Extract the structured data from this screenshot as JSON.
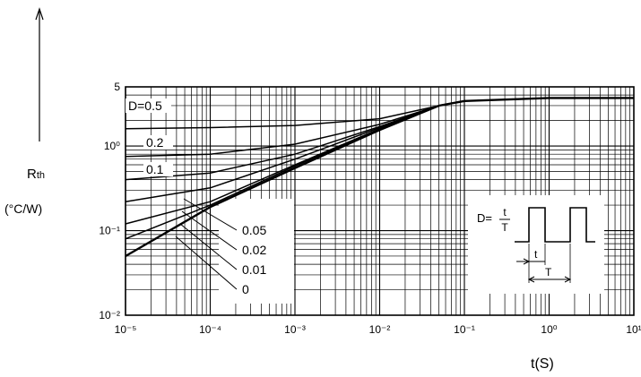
{
  "chart_data": {
    "type": "line",
    "title": "",
    "ylabel": "Rth",
    "ylabel_unit": "(°C/W)",
    "xlabel": "t(S)",
    "x_scale": "log",
    "y_scale": "log",
    "xlim": [
      1e-05,
      10
    ],
    "ylim": [
      0.01,
      5
    ],
    "grid": true,
    "x_tick_labels": [
      "10⁻⁵",
      "10⁻⁴",
      "10⁻³",
      "10⁻²",
      "10⁻¹",
      "10⁰",
      "10¹"
    ],
    "x_tick_values": [
      1e-05,
      0.0001,
      0.001,
      0.01,
      0.1,
      1,
      10
    ],
    "y_tick_labels": [
      "10⁻²",
      "10⁻¹",
      "10⁰",
      "5"
    ],
    "y_tick_values": [
      0.01,
      0.1,
      1,
      5
    ],
    "series": [
      {
        "name": "D=0.5",
        "x": [
          1e-05,
          0.0001,
          0.001,
          0.01,
          0.05,
          0.1,
          1,
          10
        ],
        "y": [
          1.6,
          1.65,
          1.75,
          2.1,
          3.0,
          3.4,
          3.7,
          3.7
        ]
      },
      {
        "name": "0.2",
        "x": [
          1e-05,
          0.0001,
          0.001,
          0.01,
          0.05,
          0.1,
          1,
          10
        ],
        "y": [
          0.75,
          0.8,
          1.05,
          1.8,
          3.0,
          3.4,
          3.7,
          3.7
        ]
      },
      {
        "name": "0.1",
        "x": [
          1e-05,
          0.0001,
          0.001,
          0.01,
          0.05,
          0.1,
          1,
          10
        ],
        "y": [
          0.4,
          0.48,
          0.8,
          1.7,
          3.0,
          3.4,
          3.7,
          3.7
        ]
      },
      {
        "name": "0.05",
        "x": [
          1e-05,
          0.0001,
          0.001,
          0.01,
          0.05,
          0.1,
          1,
          10
        ],
        "y": [
          0.22,
          0.32,
          0.7,
          1.65,
          3.0,
          3.4,
          3.7,
          3.7
        ]
      },
      {
        "name": "0.02",
        "x": [
          1e-05,
          0.0001,
          0.001,
          0.01,
          0.05,
          0.1,
          1,
          10
        ],
        "y": [
          0.12,
          0.22,
          0.6,
          1.6,
          3.0,
          3.4,
          3.7,
          3.7
        ]
      },
      {
        "name": "0.01",
        "x": [
          1e-05,
          0.0001,
          0.001,
          0.01,
          0.05,
          0.1,
          1,
          10
        ],
        "y": [
          0.08,
          0.2,
          0.58,
          1.58,
          3.0,
          3.4,
          3.7,
          3.7
        ]
      },
      {
        "name": "0",
        "x": [
          1e-05,
          0.0001,
          0.001,
          0.01,
          0.05,
          0.1,
          1,
          10
        ],
        "y": [
          0.05,
          0.19,
          0.55,
          1.55,
          3.0,
          3.4,
          3.7,
          3.7
        ]
      }
    ],
    "inset": {
      "formula_left": "D=",
      "formula_num": "t",
      "formula_den": "T",
      "label_t": "t",
      "label_T": "T"
    }
  }
}
